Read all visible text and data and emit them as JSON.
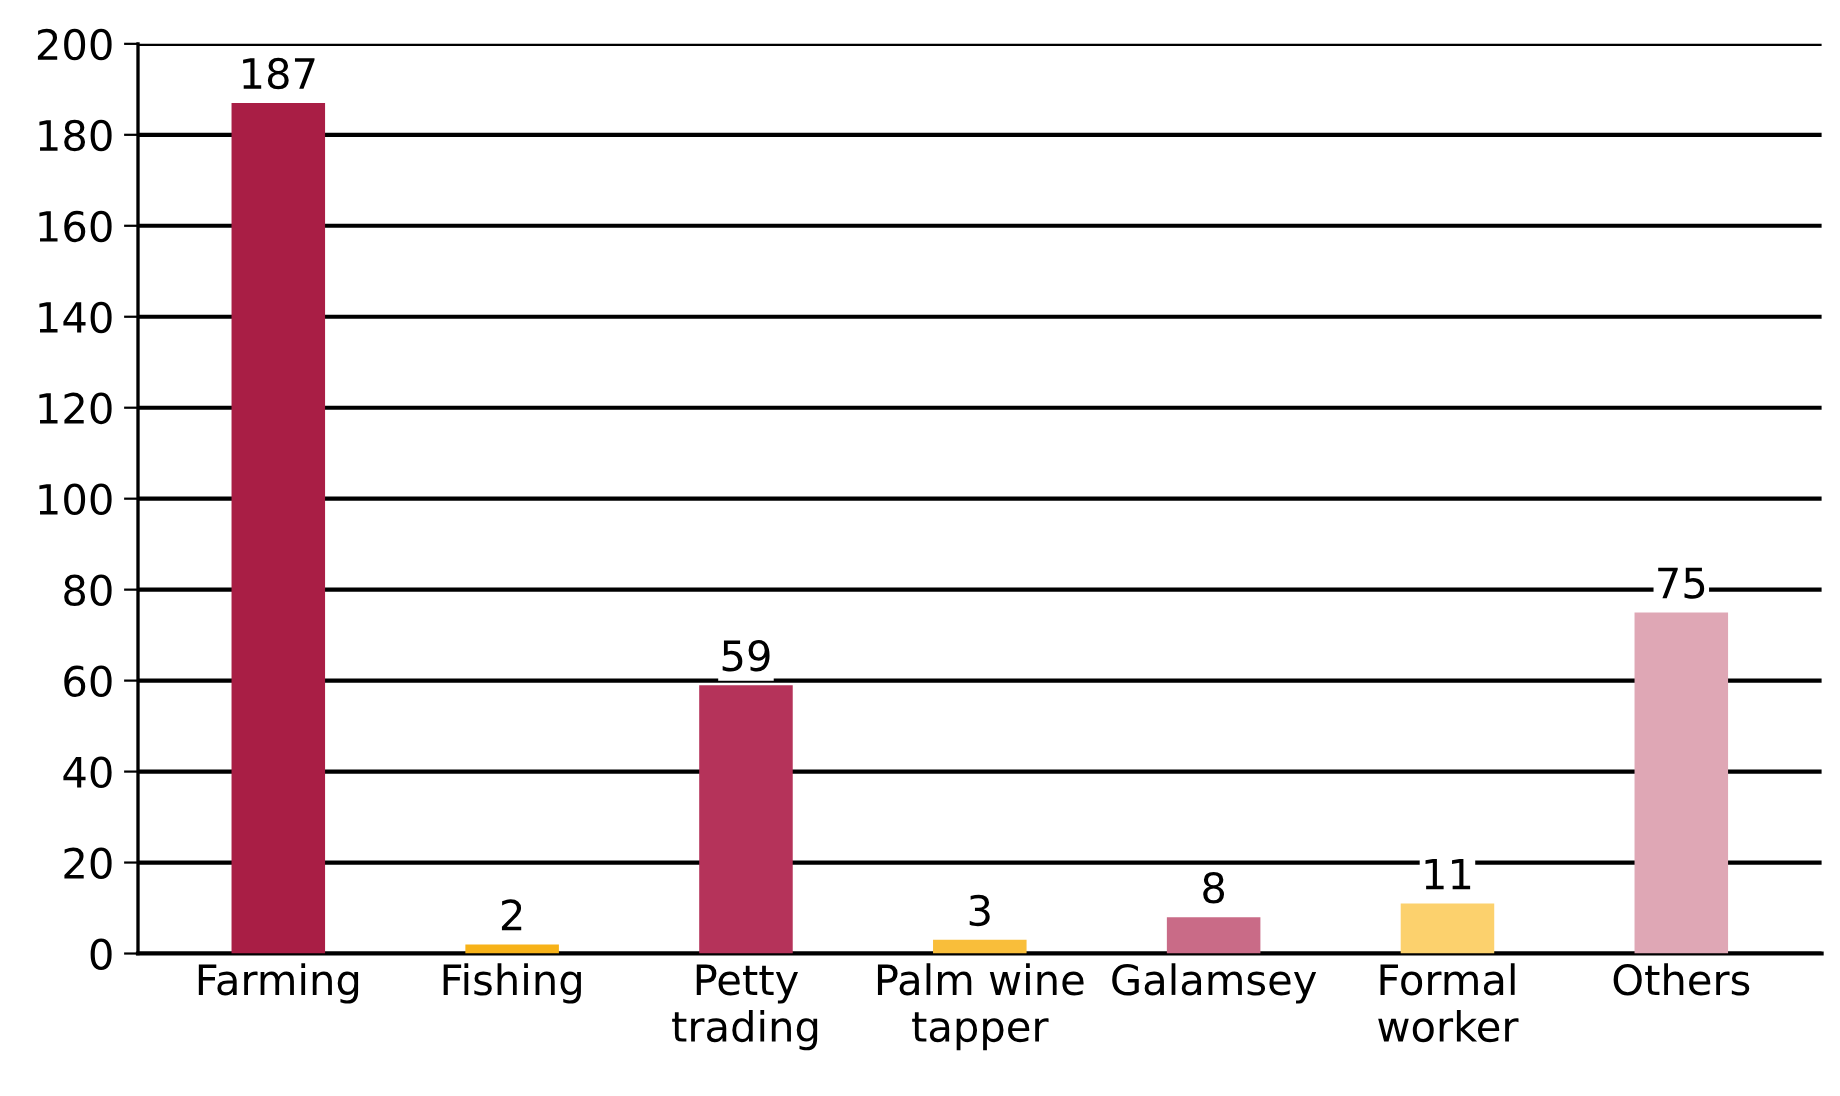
{
  "chart_data": {
    "type": "bar",
    "categories": [
      "Farming",
      "Fishing",
      "Petty\ntrading",
      "Palm wine\ntapper",
      "Galamsey",
      "Formal\nworker",
      "Others"
    ],
    "values": [
      187,
      2,
      59,
      3,
      8,
      11,
      75
    ],
    "colors": [
      "#a91e45",
      "#f7b218",
      "#b5335a",
      "#f9be3a",
      "#c96b87",
      "#fcd16d",
      "#dfa7b5"
    ],
    "ylim": [
      0,
      200
    ],
    "yticks": [
      0,
      20,
      40,
      60,
      80,
      100,
      120,
      140,
      160,
      180,
      200
    ],
    "grid": "y",
    "data_labels": true
  }
}
